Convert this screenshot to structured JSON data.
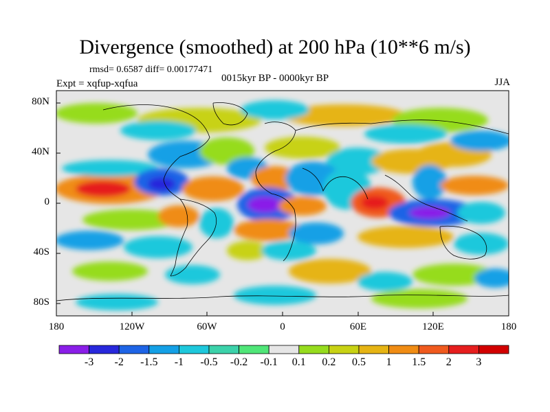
{
  "title": "Divergence (smoothed) at 200 hPa (10**6 m/s)",
  "stats": "rmsd= 0.6587 diff= 0.00177471",
  "experiment": "Expt = xqfup-xqfua",
  "period": "0015kyr BP - 0000kyr BP",
  "season": "JJA",
  "lat_labels": [
    "80N",
    "40N",
    "0",
    "40S",
    "80S"
  ],
  "lon_labels": [
    "180",
    "120W",
    "60W",
    "0",
    "60E",
    "120E",
    "180"
  ],
  "colorbar": {
    "labels": [
      "-3",
      "-2",
      "-1.5",
      "-1",
      "-0.5",
      "-0.2",
      "-0.1",
      "0.1",
      "0.2",
      "0.5",
      "1",
      "1.5",
      "2",
      "3"
    ],
    "colors": [
      "#8a1ee8",
      "#2828dc",
      "#1e64e6",
      "#14a0e6",
      "#1ec8dc",
      "#3cd2aa",
      "#50e678",
      "#e6e6e6",
      "#96dc1e",
      "#c8d214",
      "#e6b414",
      "#f08c14",
      "#f05a1e",
      "#e61e1e",
      "#d20000"
    ]
  }
}
